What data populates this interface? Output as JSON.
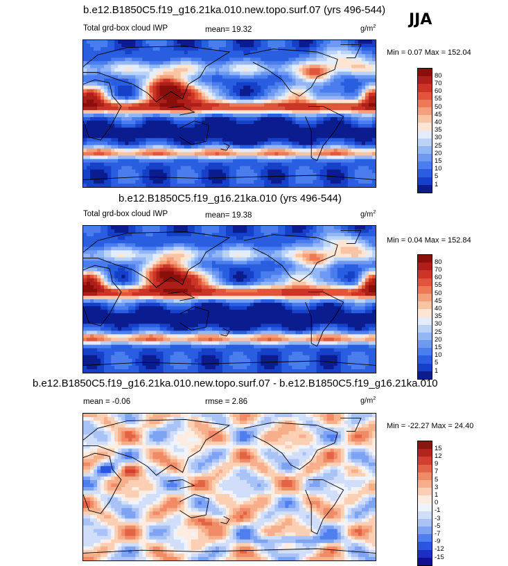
{
  "season": "JJA",
  "palette_abs": [
    "#0b1c8f",
    "#1640c8",
    "#2a5ee0",
    "#4a7ded",
    "#6d99f2",
    "#93b7f6",
    "#bcd3f8",
    "#e2ecfb",
    "#fde5d4",
    "#f9c4a4",
    "#f5a07a",
    "#ee7a55",
    "#e1553a",
    "#cc3526",
    "#ad1f18",
    "#8a0f0b"
  ],
  "palette_diff": [
    "#10108e",
    "#1b2fc2",
    "#2a55e0",
    "#4f7fee",
    "#7ea3f3",
    "#a9c3f7",
    "#d0def9",
    "#eef3fc",
    "#fdecdf",
    "#fbcfb4",
    "#f7ae8a",
    "#f08b66",
    "#e36444",
    "#cf4030",
    "#b0251c",
    "#8b1512"
  ],
  "panels": [
    {
      "id": "top",
      "title": "b.e12.B1850C5.f19_g16.21ka.010.new.topo.surf.07 (yrs 496-544)",
      "left_label": "Total grd-box cloud IWP",
      "mid_label": "mean=  19.32",
      "units": "g/m",
      "units_sup": "2",
      "minmax": "Min =   0.07 Max = 152.04",
      "colorbar_labels": [
        "80",
        "70",
        "60",
        "55",
        "50",
        "45",
        "40",
        "35",
        "30",
        "25",
        "20",
        "15",
        "10",
        "5",
        "1"
      ]
    },
    {
      "id": "middle",
      "title": "b.e12.B1850C5.f19_g16.21ka.010 (yrs 496-544)",
      "left_label": "Total grd-box cloud IWP",
      "mid_label": "mean=  19.38",
      "units": "g/m",
      "units_sup": "2",
      "minmax": "Min =   0.04 Max = 152.84",
      "colorbar_labels": [
        "80",
        "70",
        "60",
        "55",
        "50",
        "45",
        "40",
        "35",
        "30",
        "25",
        "20",
        "15",
        "10",
        "5",
        "1"
      ]
    },
    {
      "id": "bottom",
      "title": "b.e12.B1850C5.f19_g16.21ka.010.new.topo.surf.07 - b.e12.B1850C5.f19_g16.21ka.010",
      "left_label": "mean =  -0.06",
      "mid_label": "rmse =   2.86",
      "units": "g/m",
      "units_sup": "2",
      "minmax": "Min = -22.27 Max =  24.40",
      "colorbar_labels": [
        "15",
        "12",
        "9",
        "7",
        "5",
        "3",
        "1",
        "0",
        "-1",
        "-3",
        "-5",
        "-7",
        "-9",
        "-12",
        "-15"
      ]
    }
  ],
  "chart_data": [
    {
      "type": "heatmap",
      "title": "b.e12.B1850C5.f19_g16.21ka.010.new.topo.surf.07 (yrs 496-544)",
      "variable": "Total grd-box cloud IWP",
      "season": "JJA",
      "units": "g/m2",
      "mean": 19.32,
      "min": 0.07,
      "max": 152.04,
      "contour_levels": [
        1,
        5,
        10,
        15,
        20,
        25,
        30,
        35,
        40,
        45,
        50,
        55,
        60,
        70,
        80
      ]
    },
    {
      "type": "heatmap",
      "title": "b.e12.B1850C5.f19_g16.21ka.010 (yrs 496-544)",
      "variable": "Total grd-box cloud IWP",
      "season": "JJA",
      "units": "g/m2",
      "mean": 19.38,
      "min": 0.04,
      "max": 152.84,
      "contour_levels": [
        1,
        5,
        10,
        15,
        20,
        25,
        30,
        35,
        40,
        45,
        50,
        55,
        60,
        70,
        80
      ]
    },
    {
      "type": "heatmap",
      "title": "b.e12.B1850C5.f19_g16.21ka.010.new.topo.surf.07 - b.e12.B1850C5.f19_g16.21ka.010",
      "season": "JJA",
      "units": "g/m2",
      "mean": -0.06,
      "rmse": 2.86,
      "min": -22.27,
      "max": 24.4,
      "contour_levels": [
        -15,
        -12,
        -9,
        -7,
        -5,
        -3,
        -1,
        0,
        1,
        3,
        5,
        7,
        9,
        12,
        15
      ]
    }
  ]
}
